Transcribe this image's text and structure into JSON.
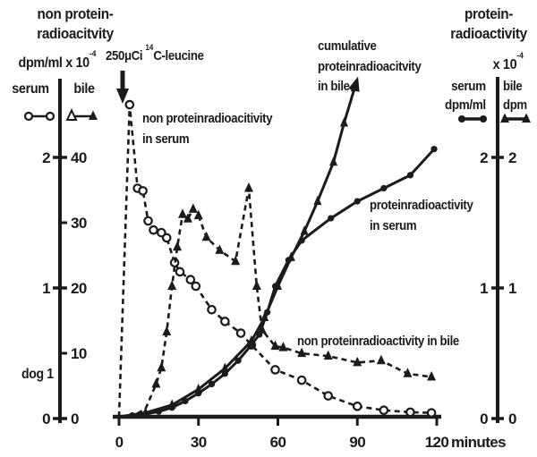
{
  "figure": {
    "bg": "#ffffff",
    "ink": "#1b1b1b"
  },
  "left_axis": {
    "title_line1": "non protein-",
    "title_line2": "radioacitvity",
    "unit_base": "dpm/ml x 10",
    "unit_exp": "-4",
    "col_left": "serum",
    "col_right": "bile"
  },
  "right_axis": {
    "title_line1": "protein-",
    "title_line2": "radioactivity",
    "unit_base": "x 10",
    "unit_exp": "-4",
    "col_left_line1": "serum",
    "col_left_line2": "dpm/ml",
    "col_right_line1": "bile",
    "col_right_line2": "dpm"
  },
  "annotations": {
    "subject": "dog 1",
    "dose_prefix": "250μCi ",
    "isotope_sup": "14",
    "isotope_rest": "C-leucine",
    "label_np_serum_l1": "non proteinradioacitivity",
    "label_np_serum_l2": "in serum",
    "label_cum_l1": "cumulative",
    "label_cum_l2": "proteinradioacitvity",
    "label_cum_l3": "in bile",
    "label_p_serum_l1": "proteinradioactivity",
    "label_p_serum_l2": "in serum",
    "label_np_bile": "non proteinradioactivity in bile",
    "x_unit": "minutes"
  },
  "chart_data": {
    "type": "line",
    "title": "",
    "xlabel": "minutes",
    "grid": false,
    "axes": {
      "left_serum": {
        "label": "non protein-radioacitvity serum, dpm/ml x 10^-4",
        "ticks": [
          0,
          1,
          2
        ],
        "range": [
          0,
          2
        ]
      },
      "left_bile": {
        "label": "non protein-radioacitvity bile, dpm/ml x 10^-4",
        "ticks": [
          0,
          10,
          20,
          30,
          40
        ],
        "range": [
          0,
          40
        ]
      },
      "right": {
        "label": "protein-radioactivity x 10^-4 (serum dpm/ml, bile dpm)",
        "ticks": [
          0,
          1,
          2
        ],
        "range": [
          0,
          2
        ]
      },
      "x": {
        "label": "minutes",
        "ticks": [
          0,
          30,
          60,
          90,
          120
        ],
        "range": [
          0,
          120
        ]
      }
    },
    "injection_annotation": {
      "text": "250μCi 14C-leucine",
      "time_min": 0
    },
    "series": [
      {
        "name": "non proteinradioacitivity in serum",
        "axis": "left_serum",
        "line": "dashed",
        "marker": "open-circle",
        "points": [
          [
            0,
            0
          ],
          [
            4,
            2.39
          ],
          [
            7,
            1.75
          ],
          [
            9,
            1.73
          ],
          [
            11,
            1.5
          ],
          [
            13,
            1.43
          ],
          [
            16,
            1.41
          ],
          [
            18,
            1.37
          ],
          [
            21,
            1.18
          ],
          [
            23,
            1.11
          ],
          [
            27,
            1.05
          ],
          [
            29,
            1.0
          ],
          [
            35,
            0.82
          ],
          [
            40,
            0.73
          ],
          [
            46,
            0.64
          ],
          [
            50,
            0.55
          ],
          [
            59,
            0.36
          ],
          [
            69,
            0.28
          ],
          [
            79,
            0.16
          ],
          [
            90,
            0.08
          ],
          [
            100,
            0.05
          ],
          [
            110,
            0.035
          ],
          [
            118,
            0.03
          ]
        ]
      },
      {
        "name": "non proteinradioactivity in bile",
        "axis": "left_bile",
        "line": "dashed",
        "marker": "filled-triangle",
        "points": [
          [
            0,
            0
          ],
          [
            6,
            0.3
          ],
          [
            10,
            1.2
          ],
          [
            14,
            5
          ],
          [
            16,
            7.5
          ],
          [
            18,
            13
          ],
          [
            20,
            20
          ],
          [
            22,
            26
          ],
          [
            24,
            31
          ],
          [
            26,
            30.3
          ],
          [
            28,
            31.8
          ],
          [
            30,
            30.8
          ],
          [
            33,
            27.5
          ],
          [
            38,
            25.5
          ],
          [
            44,
            23.8
          ],
          [
            49,
            35
          ],
          [
            52,
            20
          ],
          [
            54,
            13.3
          ],
          [
            59,
            10.8
          ],
          [
            62,
            10.6
          ],
          [
            69,
            9.7
          ],
          [
            79,
            9.3
          ],
          [
            90,
            8.3
          ],
          [
            99,
            8.6
          ],
          [
            109,
            6.6
          ],
          [
            118,
            6.1
          ]
        ]
      },
      {
        "name": "proteinradioactivity in serum",
        "axis": "right",
        "line": "solid",
        "marker": "filled-circle",
        "points": [
          [
            0,
            0
          ],
          [
            5,
            0.01
          ],
          [
            10,
            0.02
          ],
          [
            15,
            0.04
          ],
          [
            20,
            0.07
          ],
          [
            25,
            0.12
          ],
          [
            30,
            0.18
          ],
          [
            35,
            0.25
          ],
          [
            40,
            0.33
          ],
          [
            45,
            0.43
          ],
          [
            50,
            0.55
          ],
          [
            53,
            0.63
          ],
          [
            56,
            0.8
          ],
          [
            59,
            1.0
          ],
          [
            64,
            1.2
          ],
          [
            69,
            1.35
          ],
          [
            80,
            1.52
          ],
          [
            90,
            1.65
          ],
          [
            100,
            1.75
          ],
          [
            110,
            1.85
          ],
          [
            119,
            2.05
          ]
        ]
      },
      {
        "name": "cumulative proteinradioacitvity in bile",
        "axis": "right",
        "line": "solid",
        "marker": "filled-triangle",
        "end_arrow": true,
        "points": [
          [
            0,
            0
          ],
          [
            10,
            0.03
          ],
          [
            20,
            0.09
          ],
          [
            30,
            0.21
          ],
          [
            40,
            0.37
          ],
          [
            50,
            0.58
          ],
          [
            55,
            0.76
          ],
          [
            60,
            1.0
          ],
          [
            65,
            1.22
          ],
          [
            70,
            1.42
          ],
          [
            75,
            1.65
          ],
          [
            81,
            1.95
          ],
          [
            85,
            2.25
          ],
          [
            89,
            2.52
          ]
        ]
      }
    ],
    "legend": [
      {
        "name": "non proteinradioacitivity in serum",
        "symbol": "open-circle pair"
      },
      {
        "name": "non proteinradioactivity in bile",
        "symbol": "triangle pair"
      },
      {
        "name": "proteinradioactivity in serum",
        "symbol": "filled-circle pair"
      },
      {
        "name": "cumulative proteinradioacitvity in bile",
        "symbol": "filled-triangle pair"
      }
    ]
  }
}
